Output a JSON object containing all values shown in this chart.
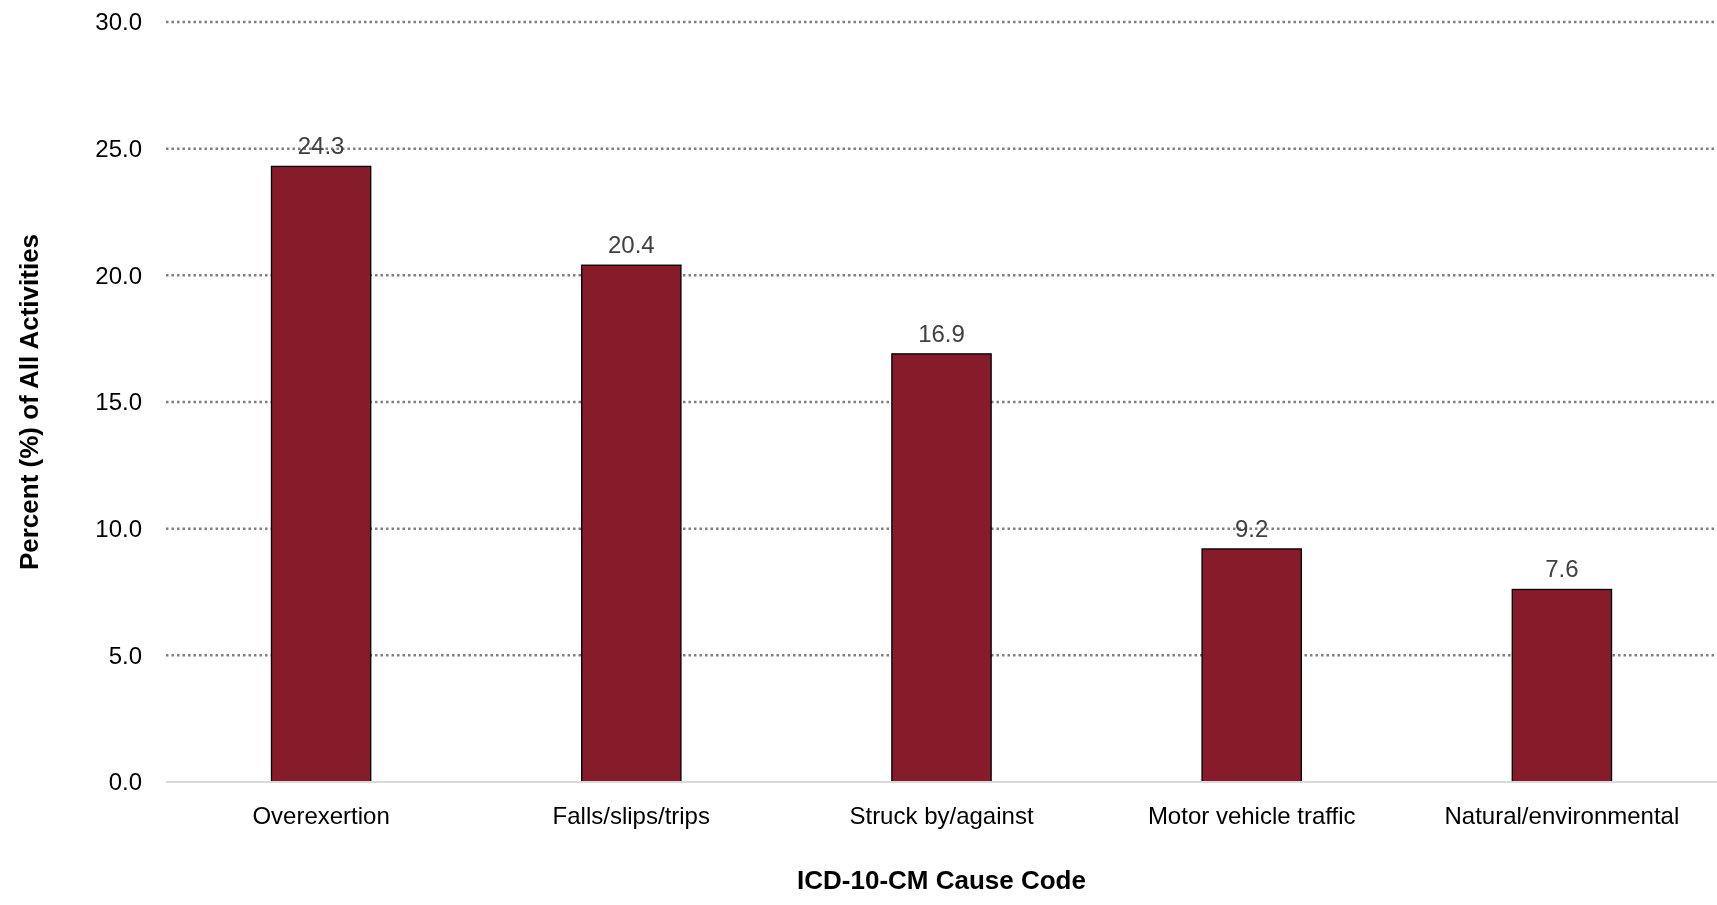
{
  "chart_data": {
    "type": "bar",
    "xlabel": "ICD-10-CM Cause Code",
    "ylabel": "Percent (%) of All Activities",
    "categories": [
      "Overexertion",
      "Falls/slips/trips",
      "Struck by/against",
      "Motor vehicle traffic",
      "Natural/environmental"
    ],
    "values": [
      24.3,
      20.4,
      16.9,
      9.2,
      7.6
    ],
    "color": "#861b2a",
    "ylim": [
      0,
      30
    ],
    "yticks": [
      {
        "value": 0,
        "label": "0.0"
      },
      {
        "value": 5,
        "label": "5.0"
      },
      {
        "value": 10,
        "label": "10.0"
      },
      {
        "value": 15,
        "label": "15.0"
      },
      {
        "value": 20,
        "label": "20.0"
      },
      {
        "value": 25,
        "label": "25.0"
      },
      {
        "value": 30,
        "label": "30.0"
      }
    ],
    "grid": "y",
    "data_labels": true
  }
}
